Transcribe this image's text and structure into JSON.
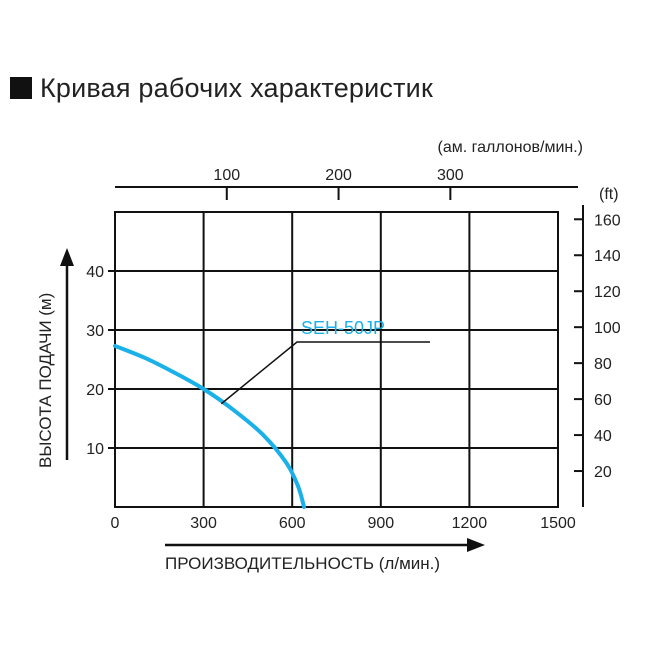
{
  "title": "Кривая рабочих характеристик",
  "colors": {
    "curve": "#1ab0e8",
    "grid": "#111111",
    "text": "#222222"
  },
  "chart_data": {
    "type": "line",
    "title": "Кривая рабочих характеристик",
    "xlabel": "ПРОИЗВОДИТЕЛЬНОСТЬ (л/мин.)",
    "ylabel": "ВЫСОТА ПОДАЧИ (м)",
    "xlim": [
      0,
      1500
    ],
    "ylim": [
      0,
      50
    ],
    "x_ticks": [
      0,
      300,
      600,
      900,
      1200,
      1500
    ],
    "y_ticks": [
      10,
      20,
      30,
      40
    ],
    "grid": true,
    "top_axis": {
      "label": "(ам. галлонов/мин.)",
      "unit_factor": 3.785,
      "ticks": [
        100,
        200,
        300
      ]
    },
    "right_axis": {
      "label": "(ft)",
      "unit_factor": 3.281,
      "ticks": [
        20,
        40,
        60,
        80,
        100,
        120,
        140,
        160
      ]
    },
    "series": [
      {
        "name": "SEH-50JP",
        "x": [
          0,
          100,
          200,
          300,
          400,
          500,
          580,
          620,
          640
        ],
        "y": [
          27.3,
          25.3,
          22.8,
          20.0,
          16.5,
          12.3,
          7.5,
          3.5,
          0
        ]
      }
    ]
  }
}
